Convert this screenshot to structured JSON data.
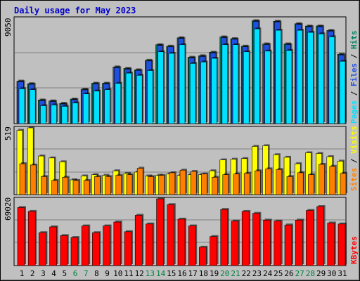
{
  "colors": {
    "background": "#c0c0c0",
    "title": "#0000cc",
    "pages": "#00e0ff",
    "files": "#2050e0",
    "hits": "#008060",
    "visits": "#ffff00",
    "sites": "#ff8000",
    "kbytes": "#ff0000",
    "weekend": "#008040",
    "weekday": "#000000"
  },
  "chart_data": [
    {
      "type": "bar",
      "title": "Daily usage for May 2023",
      "ylabel_max": "9050",
      "legend": [
        "Pages",
        "Files",
        "Hits"
      ],
      "ylim": [
        0,
        9050
      ],
      "categories": [
        "1",
        "2",
        "3",
        "4",
        "5",
        "6",
        "7",
        "8",
        "9",
        "10",
        "11",
        "12",
        "13",
        "14",
        "15",
        "16",
        "17",
        "18",
        "19",
        "20",
        "21",
        "22",
        "23",
        "24",
        "25",
        "26",
        "27",
        "28",
        "29",
        "30",
        "31"
      ],
      "weekend_days": [
        "6",
        "7",
        "13",
        "14",
        "20",
        "21",
        "27",
        "28"
      ],
      "series": [
        {
          "name": "Hits",
          "values": [
            3650,
            3430,
            2030,
            1950,
            1740,
            2110,
            2960,
            3470,
            3470,
            4870,
            4740,
            4620,
            5440,
            6780,
            6650,
            7370,
            5700,
            5830,
            6130,
            7450,
            7300,
            6650,
            8840,
            6850,
            8790,
            6850,
            8580,
            8380,
            8390,
            8000,
            5960
          ]
        },
        {
          "name": "Files",
          "values": [
            3600,
            3380,
            1980,
            1900,
            1690,
            2060,
            2900,
            3420,
            3420,
            4810,
            4690,
            4570,
            5380,
            6720,
            6590,
            7320,
            5640,
            5770,
            6080,
            7390,
            7250,
            6600,
            8780,
            6790,
            8740,
            6790,
            8520,
            8330,
            8330,
            7950,
            5900
          ]
        },
        {
          "name": "Pages",
          "values": [
            3000,
            2920,
            1540,
            1610,
            1490,
            1780,
            2550,
            2800,
            2920,
            3460,
            4340,
            4150,
            4560,
            6170,
            6040,
            6780,
            5170,
            5300,
            5610,
            6780,
            6780,
            6170,
            8140,
            6230,
            8020,
            6290,
            8020,
            7840,
            7710,
            7460,
            5360
          ]
        }
      ]
    },
    {
      "type": "bar",
      "ylabel_max": "519",
      "legend": [
        "Sites",
        "Visits"
      ],
      "ylim": [
        0,
        519
      ],
      "categories": [
        "1",
        "2",
        "3",
        "4",
        "5",
        "6",
        "7",
        "8",
        "9",
        "10",
        "11",
        "12",
        "13",
        "14",
        "15",
        "16",
        "17",
        "18",
        "19",
        "20",
        "21",
        "22",
        "23",
        "24",
        "25",
        "26",
        "27",
        "28",
        "29",
        "30",
        "31"
      ],
      "series": [
        {
          "name": "Visits",
          "values": [
            500,
            519,
            300,
            285,
            255,
            115,
            145,
            155,
            150,
            185,
            165,
            175,
            145,
            150,
            160,
            150,
            155,
            155,
            185,
            270,
            275,
            280,
            375,
            380,
            310,
            290,
            240,
            325,
            320,
            295,
            260
          ]
        },
        {
          "name": "Sites",
          "values": [
            240,
            230,
            140,
            110,
            135,
            110,
            110,
            140,
            140,
            150,
            155,
            205,
            140,
            150,
            170,
            190,
            180,
            160,
            135,
            155,
            160,
            165,
            185,
            200,
            195,
            140,
            170,
            155,
            235,
            220,
            165
          ]
        }
      ]
    },
    {
      "type": "bar",
      "ylabel_max": "69020",
      "legend": [
        "KBytes"
      ],
      "ylim": [
        0,
        69020
      ],
      "categories": [
        "1",
        "2",
        "3",
        "4",
        "5",
        "6",
        "7",
        "8",
        "9",
        "10",
        "11",
        "12",
        "13",
        "14",
        "15",
        "16",
        "17",
        "18",
        "19",
        "20",
        "21",
        "22",
        "23",
        "24",
        "25",
        "26",
        "27",
        "28",
        "29",
        "30",
        "31"
      ],
      "series": [
        {
          "name": "KBytes",
          "values": [
            60000,
            56000,
            34000,
            40000,
            31000,
            29000,
            41000,
            34000,
            41000,
            45000,
            35000,
            52000,
            43000,
            69020,
            63000,
            48000,
            41000,
            19000,
            30000,
            58000,
            46000,
            56000,
            54000,
            47000,
            46000,
            42000,
            47000,
            57000,
            61000,
            44000,
            43000
          ]
        }
      ]
    }
  ]
}
